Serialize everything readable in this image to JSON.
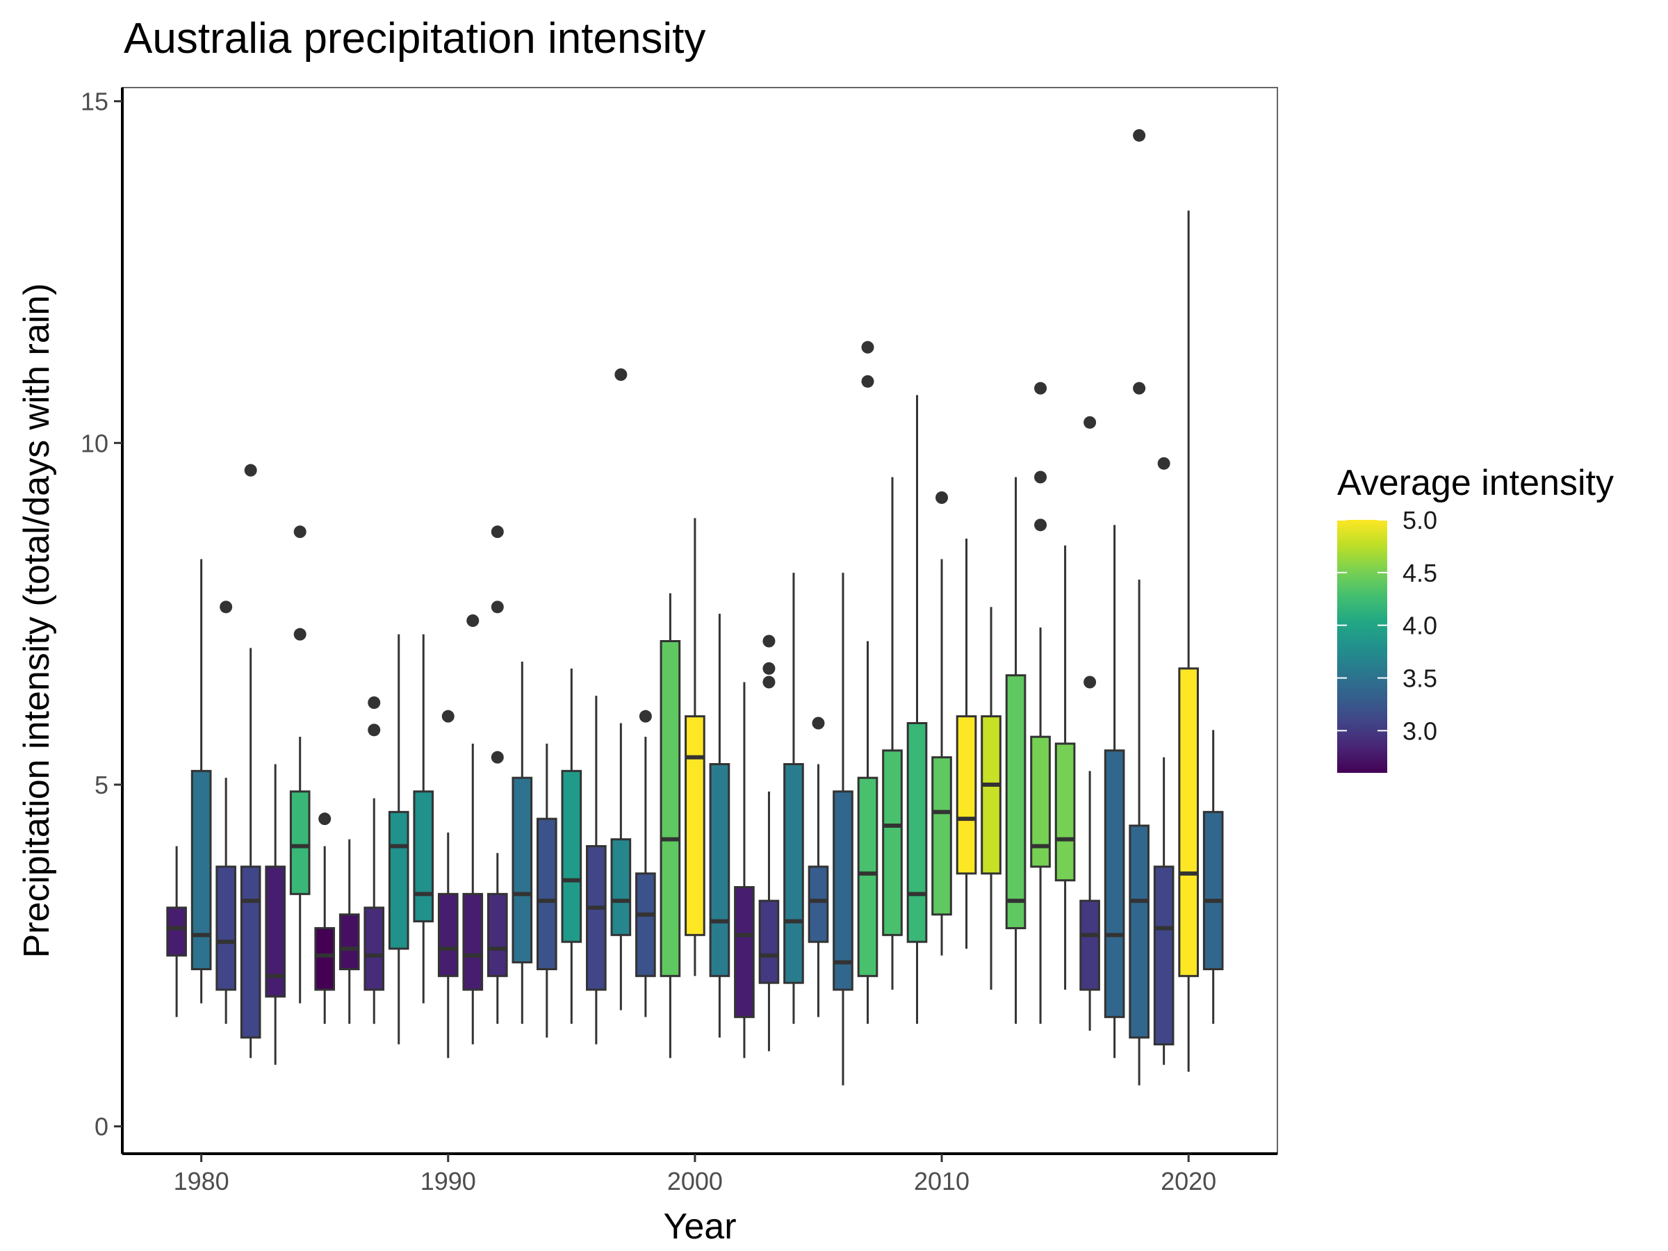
{
  "chart_data": {
    "type": "box",
    "title": "Australia precipitation intensity",
    "xlabel": "Year",
    "ylabel": "Precipitation intensity (total/days with rain)",
    "xlim": [
      1976.8,
      2023.6
    ],
    "ylim": [
      -0.4,
      15.2
    ],
    "x_ticks": [
      1980,
      1990,
      2000,
      2010,
      2020
    ],
    "y_ticks": [
      0,
      5,
      10,
      15
    ],
    "grid": false,
    "legend": {
      "title": "Average intensity",
      "position": "right",
      "type": "colorbar",
      "colormap": "viridis",
      "range": [
        2.6,
        5.0
      ],
      "ticks": [
        "5.0",
        "4.5",
        "4.0",
        "3.5",
        "3.0"
      ]
    },
    "boxes": [
      {
        "year": 1979,
        "whisker_low": 1.6,
        "q1": 2.5,
        "median": 2.9,
        "q3": 3.2,
        "whisker_high": 4.1,
        "outliers": [],
        "avg": 2.8
      },
      {
        "year": 1980,
        "whisker_low": 1.8,
        "q1": 2.3,
        "median": 2.8,
        "q3": 5.2,
        "whisker_high": 8.3,
        "outliers": [],
        "avg": 3.5
      },
      {
        "year": 1981,
        "whisker_low": 1.5,
        "q1": 2.0,
        "median": 2.7,
        "q3": 3.8,
        "whisker_high": 5.1,
        "outliers": [
          7.6
        ],
        "avg": 3.1
      },
      {
        "year": 1982,
        "whisker_low": 1.0,
        "q1": 1.3,
        "median": 3.3,
        "q3": 3.8,
        "whisker_high": 7.0,
        "outliers": [
          9.6
        ],
        "avg": 3.1
      },
      {
        "year": 1983,
        "whisker_low": 0.9,
        "q1": 1.9,
        "median": 2.2,
        "q3": 3.8,
        "whisker_high": 5.3,
        "outliers": [],
        "avg": 2.8
      },
      {
        "year": 1984,
        "whisker_low": 1.8,
        "q1": 3.4,
        "median": 4.1,
        "q3": 4.9,
        "whisker_high": 5.7,
        "outliers": [
          7.2,
          8.7
        ],
        "avg": 4.2
      },
      {
        "year": 1985,
        "whisker_low": 1.5,
        "q1": 2.0,
        "median": 2.5,
        "q3": 2.9,
        "whisker_high": 4.1,
        "outliers": [
          4.5
        ],
        "avg": 2.6
      },
      {
        "year": 1986,
        "whisker_low": 1.5,
        "q1": 2.3,
        "median": 2.6,
        "q3": 3.1,
        "whisker_high": 4.2,
        "outliers": [],
        "avg": 2.7
      },
      {
        "year": 1987,
        "whisker_low": 1.5,
        "q1": 2.0,
        "median": 2.5,
        "q3": 3.2,
        "whisker_high": 4.8,
        "outliers": [
          5.8,
          6.2
        ],
        "avg": 2.9
      },
      {
        "year": 1988,
        "whisker_low": 1.2,
        "q1": 2.6,
        "median": 4.1,
        "q3": 4.6,
        "whisker_high": 7.2,
        "outliers": [],
        "avg": 3.8
      },
      {
        "year": 1989,
        "whisker_low": 1.8,
        "q1": 3.0,
        "median": 3.4,
        "q3": 4.9,
        "whisker_high": 7.2,
        "outliers": [],
        "avg": 3.8
      },
      {
        "year": 1990,
        "whisker_low": 1.0,
        "q1": 2.2,
        "median": 2.6,
        "q3": 3.4,
        "whisker_high": 4.3,
        "outliers": [
          6.0
        ],
        "avg": 2.8
      },
      {
        "year": 1991,
        "whisker_low": 1.2,
        "q1": 2.0,
        "median": 2.5,
        "q3": 3.4,
        "whisker_high": 5.6,
        "outliers": [
          7.4
        ],
        "avg": 2.8
      },
      {
        "year": 1992,
        "whisker_low": 1.5,
        "q1": 2.2,
        "median": 2.6,
        "q3": 3.4,
        "whisker_high": 4.0,
        "outliers": [
          5.4,
          7.6,
          8.7
        ],
        "avg": 2.9
      },
      {
        "year": 1993,
        "whisker_low": 1.5,
        "q1": 2.4,
        "median": 3.4,
        "q3": 5.1,
        "whisker_high": 6.8,
        "outliers": [],
        "avg": 3.5
      },
      {
        "year": 1994,
        "whisker_low": 1.3,
        "q1": 2.3,
        "median": 3.3,
        "q3": 4.5,
        "whisker_high": 5.6,
        "outliers": [],
        "avg": 3.2
      },
      {
        "year": 1995,
        "whisker_low": 1.5,
        "q1": 2.7,
        "median": 3.6,
        "q3": 5.2,
        "whisker_high": 6.7,
        "outliers": [],
        "avg": 3.9
      },
      {
        "year": 1996,
        "whisker_low": 1.2,
        "q1": 2.0,
        "median": 3.2,
        "q3": 4.1,
        "whisker_high": 6.3,
        "outliers": [],
        "avg": 3.1
      },
      {
        "year": 1997,
        "whisker_low": 1.7,
        "q1": 2.8,
        "median": 3.3,
        "q3": 4.2,
        "whisker_high": 5.9,
        "outliers": [
          11.0
        ],
        "avg": 3.7
      },
      {
        "year": 1998,
        "whisker_low": 1.6,
        "q1": 2.2,
        "median": 3.1,
        "q3": 3.7,
        "whisker_high": 5.7,
        "outliers": [
          6.0
        ],
        "avg": 3.2
      },
      {
        "year": 1999,
        "whisker_low": 1.0,
        "q1": 2.2,
        "median": 4.2,
        "q3": 7.1,
        "whisker_high": 7.8,
        "outliers": [],
        "avg": 4.4
      },
      {
        "year": 2000,
        "whisker_low": 2.2,
        "q1": 2.8,
        "median": 5.4,
        "q3": 6.0,
        "whisker_high": 8.9,
        "outliers": [],
        "avg": 5.0
      },
      {
        "year": 2001,
        "whisker_low": 1.3,
        "q1": 2.2,
        "median": 3.0,
        "q3": 5.3,
        "whisker_high": 7.5,
        "outliers": [],
        "avg": 3.6
      },
      {
        "year": 2002,
        "whisker_low": 1.0,
        "q1": 1.6,
        "median": 2.8,
        "q3": 3.5,
        "whisker_high": 6.5,
        "outliers": [],
        "avg": 2.8
      },
      {
        "year": 2003,
        "whisker_low": 1.1,
        "q1": 2.1,
        "median": 2.5,
        "q3": 3.3,
        "whisker_high": 4.9,
        "outliers": [
          6.5,
          6.7,
          7.1
        ],
        "avg": 3.0
      },
      {
        "year": 2004,
        "whisker_low": 1.5,
        "q1": 2.1,
        "median": 3.0,
        "q3": 5.3,
        "whisker_high": 8.1,
        "outliers": [],
        "avg": 3.6
      },
      {
        "year": 2005,
        "whisker_low": 1.6,
        "q1": 2.7,
        "median": 3.3,
        "q3": 3.8,
        "whisker_high": 5.3,
        "outliers": [
          5.9
        ],
        "avg": 3.3
      },
      {
        "year": 2006,
        "whisker_low": 0.6,
        "q1": 2.0,
        "median": 2.4,
        "q3": 4.9,
        "whisker_high": 8.1,
        "outliers": [],
        "avg": 3.4
      },
      {
        "year": 2007,
        "whisker_low": 1.5,
        "q1": 2.2,
        "median": 3.7,
        "q3": 5.1,
        "whisker_high": 7.1,
        "outliers": [
          10.9,
          11.4
        ],
        "avg": 4.3
      },
      {
        "year": 2008,
        "whisker_low": 2.0,
        "q1": 2.8,
        "median": 4.4,
        "q3": 5.5,
        "whisker_high": 9.5,
        "outliers": [],
        "avg": 4.3
      },
      {
        "year": 2009,
        "whisker_low": 1.5,
        "q1": 2.7,
        "median": 3.4,
        "q3": 5.9,
        "whisker_high": 10.7,
        "outliers": [],
        "avg": 4.2
      },
      {
        "year": 2010,
        "whisker_low": 2.5,
        "q1": 3.1,
        "median": 4.6,
        "q3": 5.4,
        "whisker_high": 8.3,
        "outliers": [
          9.2
        ],
        "avg": 4.4
      },
      {
        "year": 2011,
        "whisker_low": 2.6,
        "q1": 3.7,
        "median": 4.5,
        "q3": 6.0,
        "whisker_high": 8.6,
        "outliers": [],
        "avg": 5.0
      },
      {
        "year": 2012,
        "whisker_low": 2.0,
        "q1": 3.7,
        "median": 5.0,
        "q3": 6.0,
        "whisker_high": 7.6,
        "outliers": [],
        "avg": 4.8
      },
      {
        "year": 2013,
        "whisker_low": 1.5,
        "q1": 2.9,
        "median": 3.3,
        "q3": 6.6,
        "whisker_high": 9.5,
        "outliers": [],
        "avg": 4.4
      },
      {
        "year": 2014,
        "whisker_low": 1.5,
        "q1": 3.8,
        "median": 4.1,
        "q3": 5.7,
        "whisker_high": 7.3,
        "outliers": [
          8.8,
          9.5,
          10.8
        ],
        "avg": 4.5
      },
      {
        "year": 2015,
        "whisker_low": 2.0,
        "q1": 3.6,
        "median": 4.2,
        "q3": 5.6,
        "whisker_high": 8.5,
        "outliers": [],
        "avg": 4.5
      },
      {
        "year": 2016,
        "whisker_low": 1.4,
        "q1": 2.0,
        "median": 2.8,
        "q3": 3.3,
        "whisker_high": 5.2,
        "outliers": [
          6.5,
          10.3
        ],
        "avg": 3.0
      },
      {
        "year": 2017,
        "whisker_low": 1.0,
        "q1": 1.6,
        "median": 2.8,
        "q3": 5.5,
        "whisker_high": 8.8,
        "outliers": [],
        "avg": 3.4
      },
      {
        "year": 2018,
        "whisker_low": 0.6,
        "q1": 1.3,
        "median": 3.3,
        "q3": 4.4,
        "whisker_high": 8.0,
        "outliers": [
          10.8,
          14.5
        ],
        "avg": 3.4
      },
      {
        "year": 2019,
        "whisker_low": 0.9,
        "q1": 1.2,
        "median": 2.9,
        "q3": 3.8,
        "whisker_high": 5.4,
        "outliers": [
          9.7
        ],
        "avg": 3.1
      },
      {
        "year": 2020,
        "whisker_low": 0.8,
        "q1": 2.2,
        "median": 3.7,
        "q3": 6.7,
        "whisker_high": 13.4,
        "outliers": [],
        "avg": 5.0
      },
      {
        "year": 2021,
        "whisker_low": 1.5,
        "q1": 2.3,
        "median": 3.3,
        "q3": 4.6,
        "whisker_high": 5.8,
        "outliers": [],
        "avg": 3.4
      }
    ]
  }
}
